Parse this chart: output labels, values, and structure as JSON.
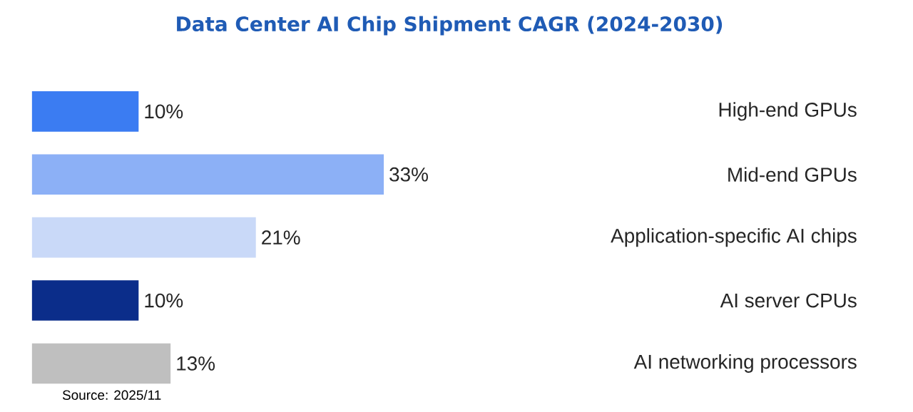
{
  "chart_data": {
    "type": "bar",
    "orientation": "horizontal",
    "title": "Data Center AI Chip Shipment CAGR (2024-2030)",
    "categories": [
      "High-end GPUs",
      "Mid-end GPUs",
      "Application-specific AI chips",
      "AI server CPUs",
      "AI networking processors"
    ],
    "values": [
      10,
      33,
      21,
      10,
      13
    ],
    "value_labels": [
      "10%",
      "33%",
      "21%",
      "10%",
      "13%"
    ],
    "colors": [
      "#3b7cf2",
      "#8cb0f6",
      "#c9d9f8",
      "#0b2d8a",
      "#bfbfbf"
    ],
    "annotations": [
      "Source: 2025/11"
    ]
  }
}
